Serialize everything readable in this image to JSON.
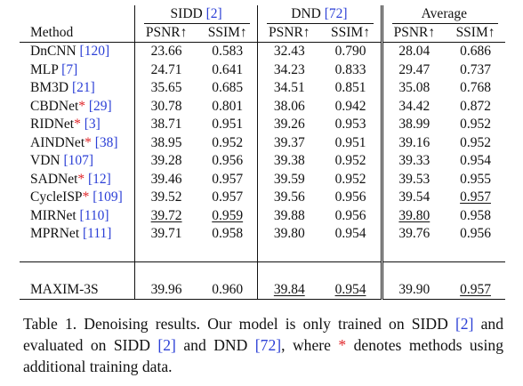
{
  "table": {
    "groups": [
      {
        "name": "SIDD",
        "cite": "[2]"
      },
      {
        "name": "DND",
        "cite": "[72]"
      },
      {
        "name": "Average",
        "cite": ""
      }
    ],
    "method_header": "Method",
    "metric_headers": [
      "PSNR↑",
      "SSIM↑",
      "PSNR↑",
      "SSIM↑",
      "PSNR↑",
      "SSIM↑"
    ],
    "rows": [
      {
        "name": "DnCNN",
        "star": "",
        "cite": "[120]",
        "values": [
          "23.66",
          "0.583",
          "32.43",
          "0.790",
          "28.04",
          "0.686"
        ]
      },
      {
        "name": "MLP",
        "star": "",
        "cite": "[7]",
        "values": [
          "24.71",
          "0.641",
          "34.23",
          "0.833",
          "29.47",
          "0.737"
        ]
      },
      {
        "name": "BM3D",
        "star": "",
        "cite": "[21]",
        "values": [
          "35.65",
          "0.685",
          "34.51",
          "0.851",
          "35.08",
          "0.768"
        ]
      },
      {
        "name": "CBDNet",
        "star": "*",
        "cite": "[29]",
        "values": [
          "30.78",
          "0.801",
          "38.06",
          "0.942",
          "34.42",
          "0.872"
        ]
      },
      {
        "name": "RIDNet",
        "star": "*",
        "cite": "[3]",
        "values": [
          "38.71",
          "0.951",
          "39.26",
          "0.953",
          "38.99",
          "0.952"
        ]
      },
      {
        "name": "AINDNet",
        "star": "*",
        "cite": "[38]",
        "values": [
          "38.95",
          "0.952",
          "39.37",
          "0.951",
          "39.16",
          "0.952"
        ]
      },
      {
        "name": "VDN",
        "star": "",
        "cite": "[107]",
        "values": [
          "39.28",
          "0.956",
          "39.38",
          "0.952",
          "39.33",
          "0.954"
        ]
      },
      {
        "name": "SADNet",
        "star": "*",
        "cite": "[12]",
        "values": [
          "39.46",
          "0.957",
          "39.59",
          "0.952",
          "39.53",
          "0.955"
        ]
      },
      {
        "name": "CycleISP",
        "star": "*",
        "cite": "[109]",
        "values": [
          "39.52",
          "0.957",
          "39.56",
          "0.956",
          "39.54",
          "0.957"
        ]
      },
      {
        "name": "MIRNet",
        "star": "",
        "cite": "[110]",
        "values": [
          "39.72",
          "0.959",
          "39.88",
          "0.956",
          "39.80",
          "0.958"
        ]
      },
      {
        "name": "MPRNet",
        "star": "",
        "cite": "[111]",
        "values": [
          "39.71",
          "0.958",
          "39.80",
          "0.954",
          "39.76",
          "0.956"
        ]
      }
    ],
    "ours": {
      "name": "MAXIM-3S",
      "values": [
        "39.96",
        "0.960",
        "39.84",
        "0.954",
        "39.90",
        "0.957"
      ]
    }
  },
  "caption": {
    "p1": "Table 1. Denoising results. Our model is only trained on SIDD ",
    "c1": "[2]",
    "p2": " and evaluated on SIDD ",
    "c2": "[2]",
    "p3": " and DND ",
    "c3": "[72]",
    "p4": ", where ",
    "star": "*",
    "p5": " denotes methods using additional training data."
  },
  "emphasis": {
    "bold": [
      [
        9,
        2
      ],
      [
        9,
        3
      ],
      [
        9,
        5
      ],
      [
        8,
        3
      ]
    ],
    "underline": [
      [
        9,
        0
      ],
      [
        9,
        1
      ],
      [
        9,
        4
      ],
      [
        8,
        5
      ]
    ],
    "ours_bold": [
      0,
      1,
      4
    ],
    "ours_underline": [
      2,
      3,
      5
    ]
  },
  "colors": {
    "cite": "#2b3fd6",
    "star": "#e0262a"
  }
}
